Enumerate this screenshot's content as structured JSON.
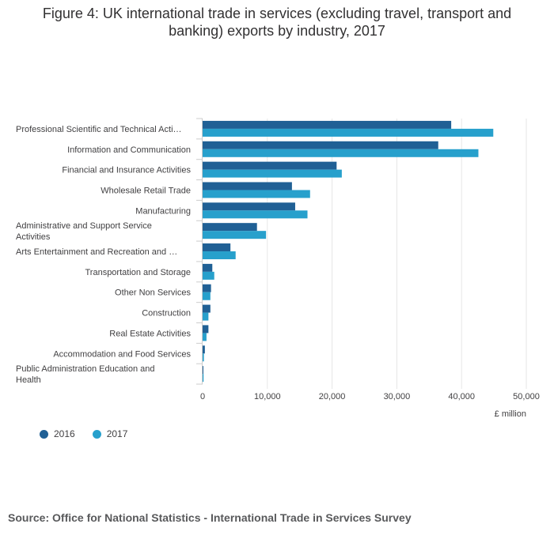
{
  "title_line1": "Figure 4: UK international trade in services (excluding travel, transport and",
  "title_line2": "banking) exports by industry, 2017",
  "source": "Source: Office for National Statistics - International Trade in Services Survey",
  "colors": {
    "s2016": "#206095",
    "s2017": "#27a0cc",
    "grid": "#e6e6e6",
    "axis": "#cccccc"
  },
  "chart_data": {
    "type": "bar",
    "orientation": "horizontal",
    "title": "Figure 4: UK international trade in services (excluding travel, transport and banking) exports by industry, 2017",
    "categories": [
      "Professional Scientific and Technical Acti…",
      "Information and Communication",
      "Financial and Insurance Activities",
      "Wholesale Retail Trade",
      "Manufacturing",
      "Administrative and Support Service Activities",
      "Arts Entertainment and Recreation and …",
      "Transportation and Storage",
      "Other Non Services",
      "Construction",
      "Real Estate Activities",
      "Accommodation and Food Services",
      "Public Administration Education and Health"
    ],
    "series": [
      {
        "name": "2016",
        "values": [
          38400,
          36400,
          20700,
          13800,
          14300,
          8400,
          4300,
          1500,
          1300,
          1200,
          900,
          350,
          100
        ]
      },
      {
        "name": "2017",
        "values": [
          44900,
          42600,
          21500,
          16600,
          16200,
          9800,
          5100,
          1800,
          1200,
          900,
          600,
          200,
          150
        ]
      }
    ],
    "xlabel": "£ million",
    "ylabel": "",
    "xlim": [
      0,
      50000
    ],
    "xticks": [
      "0",
      "10,000",
      "20,000",
      "30,000",
      "40,000",
      "50,000"
    ],
    "legend_position": "bottom-left"
  }
}
